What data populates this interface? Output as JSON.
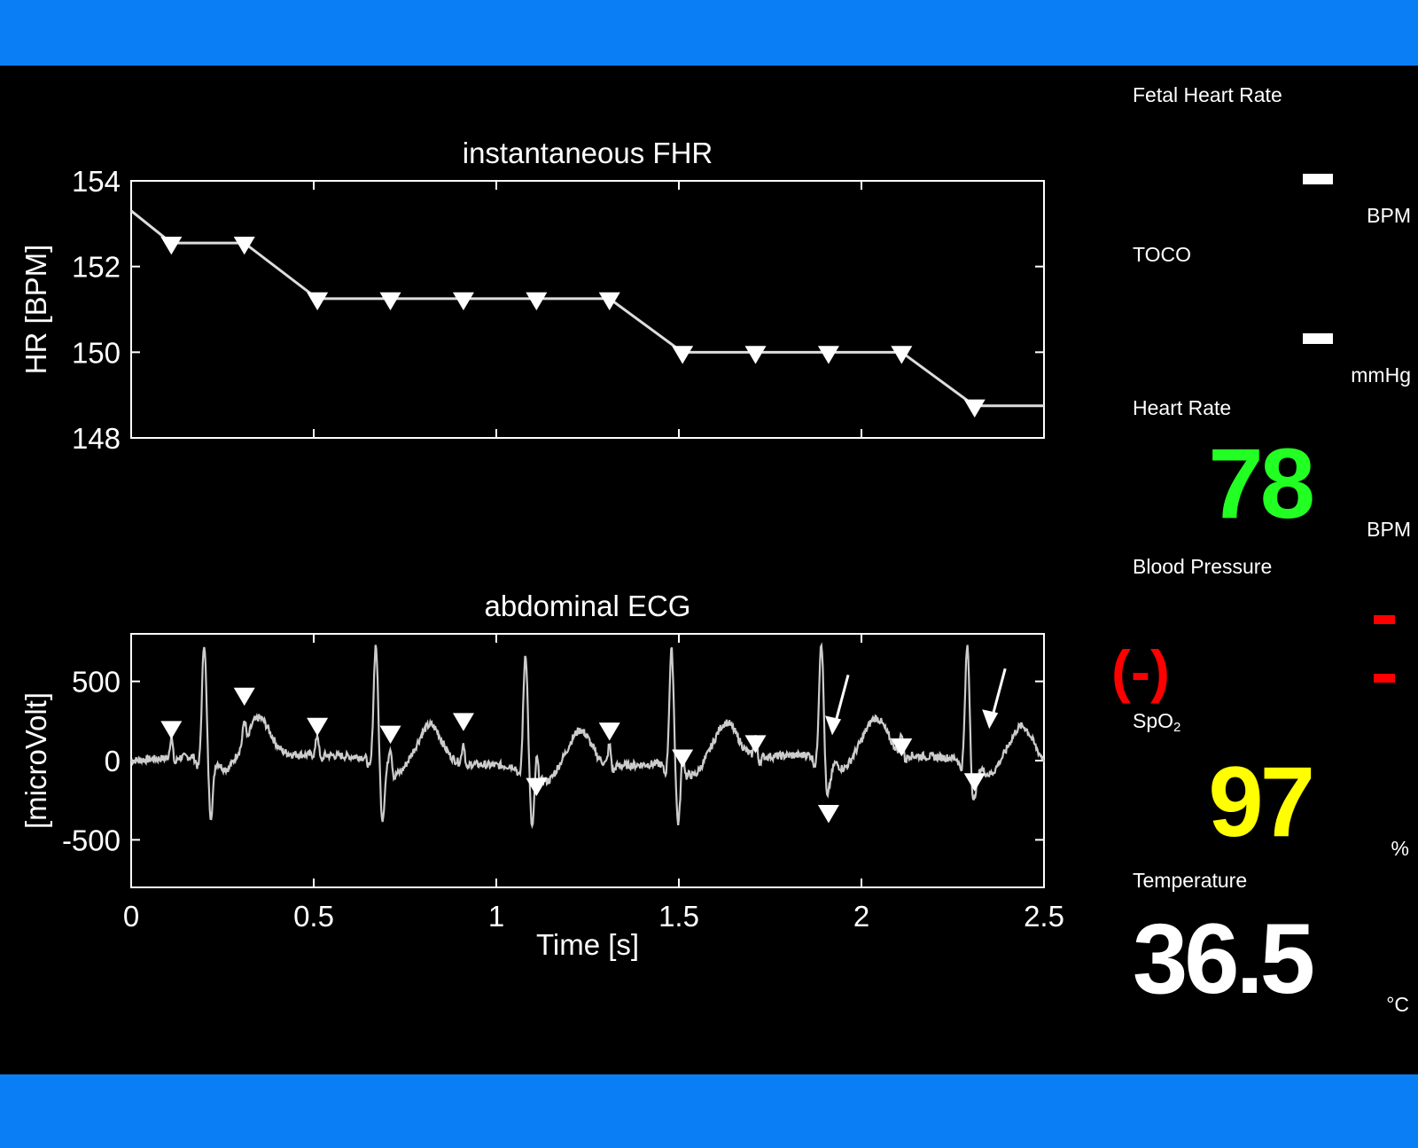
{
  "colors": {
    "band": "#0a7ff5",
    "background": "#000000",
    "hr": "#22ff22",
    "bp": "#ff0000",
    "spo2": "#ffff00",
    "temp": "#ffffff"
  },
  "chart_data": [
    {
      "type": "line",
      "title": "instantaneous FHR",
      "ylabel": "HR [BPM]",
      "xlabel": "",
      "xlim": [
        0,
        2.5
      ],
      "ylim": [
        148,
        154
      ],
      "yticks": [
        148,
        150,
        152,
        154
      ],
      "grid": false,
      "line": [
        [
          0,
          153.3
        ],
        [
          0.11,
          152.55
        ],
        [
          0.31,
          152.55
        ],
        [
          0.51,
          151.25
        ],
        [
          0.71,
          151.25
        ],
        [
          0.91,
          151.25
        ],
        [
          1.11,
          151.25
        ],
        [
          1.31,
          151.25
        ],
        [
          1.51,
          150.0
        ],
        [
          1.71,
          150.0
        ],
        [
          1.91,
          150.0
        ],
        [
          2.11,
          150.0
        ],
        [
          2.31,
          148.75
        ],
        [
          2.5,
          148.75
        ]
      ],
      "markers": [
        [
          0.11,
          152.55
        ],
        [
          0.31,
          152.55
        ],
        [
          0.51,
          151.25
        ],
        [
          0.71,
          151.25
        ],
        [
          0.91,
          151.25
        ],
        [
          1.11,
          151.25
        ],
        [
          1.31,
          151.25
        ],
        [
          1.51,
          150.0
        ],
        [
          1.71,
          150.0
        ],
        [
          1.91,
          150.0
        ],
        [
          2.11,
          150.0
        ],
        [
          2.31,
          148.75
        ]
      ]
    },
    {
      "type": "line",
      "title": "abdominal ECG",
      "ylabel": "[microVolt]",
      "xlabel": "Time [s]",
      "xlim": [
        0,
        2.5
      ],
      "ylim": [
        -800,
        800
      ],
      "xticks": [
        0,
        0.5,
        1,
        1.5,
        2,
        2.5
      ],
      "xtick_labels": [
        "0",
        "0.5",
        "1",
        "1.5",
        "2",
        "2.5"
      ],
      "yticks": [
        -500,
        0,
        500
      ],
      "grid": false,
      "maternal_qrs": [
        0.2,
        0.67,
        1.08,
        1.48,
        1.89,
        2.29
      ],
      "markers": [
        [
          0.11,
          210
        ],
        [
          0.31,
          420
        ],
        [
          0.51,
          230
        ],
        [
          0.71,
          180
        ],
        [
          0.91,
          260
        ],
        [
          1.11,
          -150
        ],
        [
          1.31,
          200
        ],
        [
          1.51,
          30
        ],
        [
          1.71,
          120
        ],
        [
          1.91,
          -320
        ],
        [
          2.11,
          100
        ],
        [
          2.31,
          -120
        ]
      ],
      "arrows": [
        [
          1.92,
          160
        ],
        [
          2.35,
          200
        ]
      ]
    }
  ],
  "vitals": {
    "fhr": {
      "label": "Fetal Heart Rate",
      "value": "",
      "unit": "BPM"
    },
    "toco": {
      "label": "TOCO",
      "value": "",
      "unit": "mmHg"
    },
    "hr": {
      "label": "Heart Rate",
      "value": "78",
      "unit": "BPM"
    },
    "bp": {
      "label": "Blood Pressure",
      "map": "(-)"
    },
    "spo2": {
      "label": "SpO",
      "sub": "2",
      "value": "97",
      "unit": "%"
    },
    "temp": {
      "label": "Temperature",
      "value": "36.5",
      "unit": "°C"
    }
  }
}
